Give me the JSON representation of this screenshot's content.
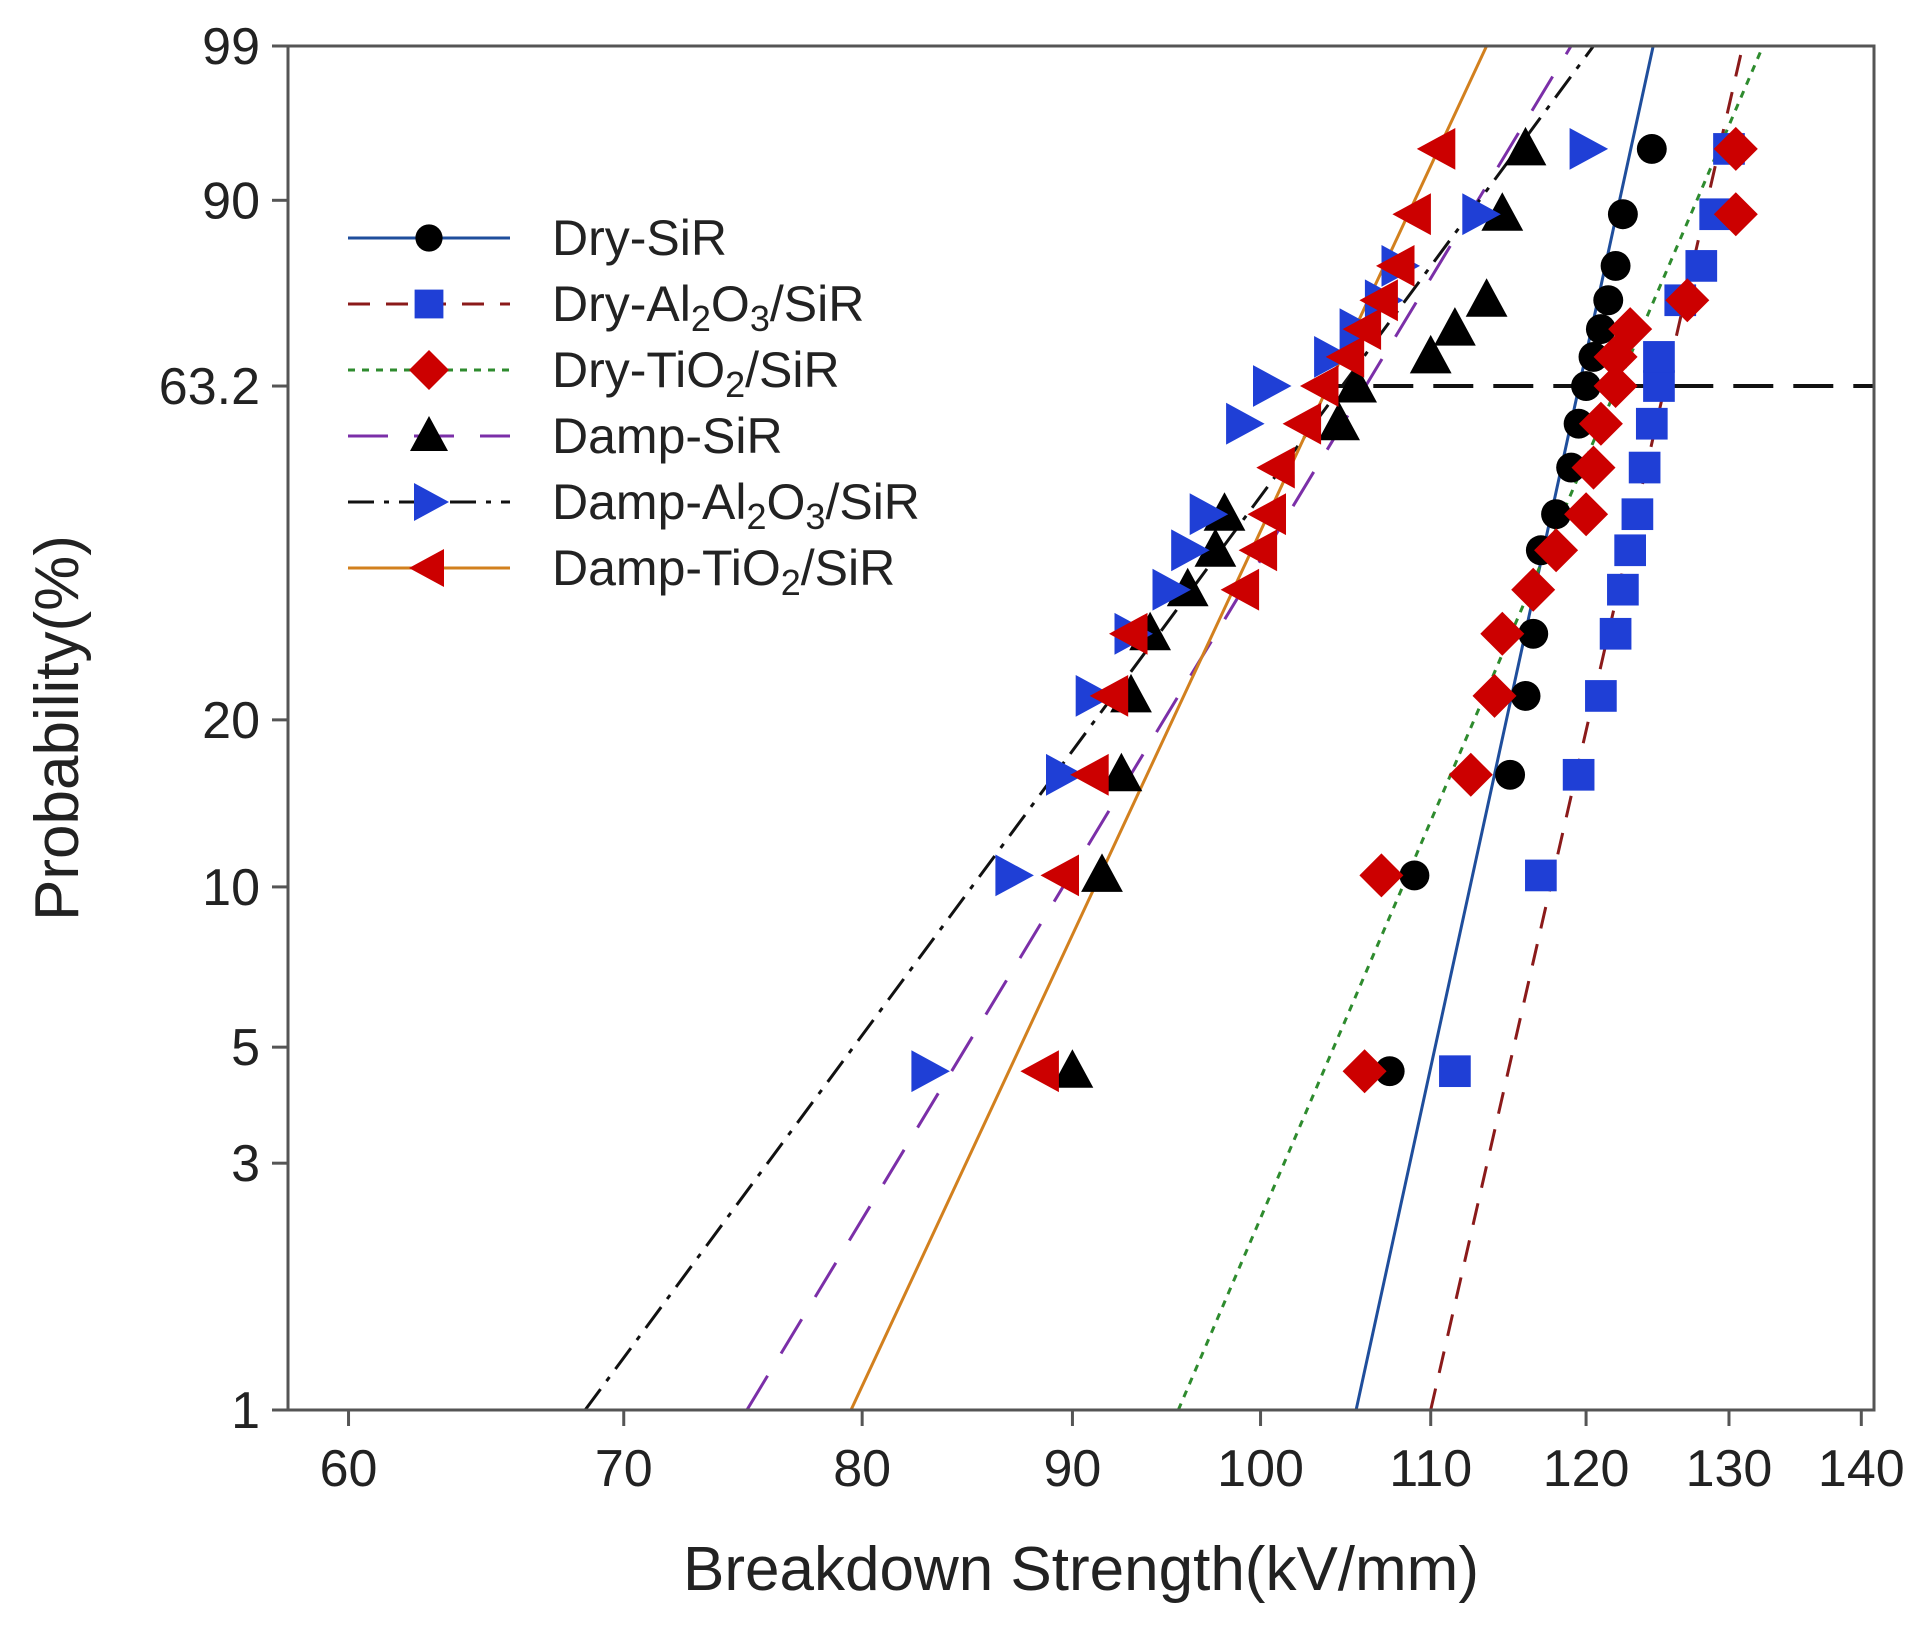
{
  "chart_data": {
    "type": "scatter",
    "title": "",
    "xlabel": "Breakdown Strength(kV/mm)",
    "ylabel": "Probability(%)",
    "x_scale": "log",
    "y_scale": "weibull",
    "xlim": [
      58,
      141
    ],
    "ylim": [
      1,
      99
    ],
    "x_ticks": [
      60,
      70,
      80,
      90,
      100,
      110,
      120,
      130,
      140
    ],
    "x_tick_labels": [
      "60",
      "70",
      "80",
      "90",
      "100",
      "110",
      "120",
      "130",
      "140"
    ],
    "y_ticks": [
      1,
      3,
      5,
      10,
      20,
      63.2,
      90,
      99
    ],
    "y_tick_labels": [
      "1",
      "3",
      "5",
      "10",
      "20",
      "63.2",
      "90",
      "99"
    ],
    "reference_line": {
      "y": 63.2,
      "x_from": 103,
      "style": "dashed",
      "color": "#111111"
    },
    "legend": {
      "position": "top-left",
      "frame": false
    },
    "grid": false,
    "series": [
      {
        "name": "Dry-SiR",
        "label_parts": [
          {
            "text": "Dry-SiR"
          }
        ],
        "color": "#1f4e9c",
        "marker": "circle",
        "marker_color": "#000000",
        "line_style": "solid",
        "points": [
          [
            107.5,
            4.5
          ],
          [
            109,
            10.5
          ],
          [
            115,
            16
          ],
          [
            116,
            22
          ],
          [
            116.5,
            28
          ],
          [
            117,
            38
          ],
          [
            118,
            43
          ],
          [
            119,
            50
          ],
          [
            119.5,
            57
          ],
          [
            120,
            63.2
          ],
          [
            120.5,
            68
          ],
          [
            121,
            72.5
          ],
          [
            121.5,
            77
          ],
          [
            122,
            82
          ],
          [
            122.5,
            88.5
          ],
          [
            124.5,
            94.5
          ]
        ],
        "fit": [
          [
            105.5,
            1
          ],
          [
            124.6,
            99
          ]
        ]
      },
      {
        "name": "Dry-Al2O3/SiR",
        "label_parts": [
          {
            "text": "Dry-Al"
          },
          {
            "text": "2",
            "sub": true
          },
          {
            "text": "O"
          },
          {
            "text": "3",
            "sub": true
          },
          {
            "text": "/SiR"
          }
        ],
        "color": "#8b1a1a",
        "marker": "square",
        "marker_color": "#1f3fd6",
        "line_style": "dashed",
        "points": [
          [
            111.5,
            4.5
          ],
          [
            117,
            10.5
          ],
          [
            119.5,
            16
          ],
          [
            121,
            22
          ],
          [
            122,
            28
          ],
          [
            122.5,
            33
          ],
          [
            123,
            38
          ],
          [
            123.5,
            43
          ],
          [
            124,
            50
          ],
          [
            124.5,
            57
          ],
          [
            125,
            63.2
          ],
          [
            125,
            68
          ],
          [
            126.5,
            77
          ],
          [
            128,
            82
          ],
          [
            129,
            88.5
          ],
          [
            130,
            94.5
          ]
        ],
        "fit": [
          [
            110,
            1
          ],
          [
            131,
            99
          ]
        ]
      },
      {
        "name": "Dry-TiO2/SiR",
        "label_parts": [
          {
            "text": "Dry-TiO"
          },
          {
            "text": "2",
            "sub": true
          },
          {
            "text": "/SiR"
          }
        ],
        "color": "#2e8b2e",
        "marker": "diamond",
        "marker_color": "#cc0000",
        "line_style": "dotted",
        "points": [
          [
            106,
            4.5
          ],
          [
            107,
            10.5
          ],
          [
            112.5,
            16
          ],
          [
            114,
            22
          ],
          [
            114.5,
            28
          ],
          [
            116.5,
            33
          ],
          [
            118,
            38
          ],
          [
            120,
            43
          ],
          [
            120.5,
            50
          ],
          [
            121,
            57
          ],
          [
            122,
            63.2
          ],
          [
            122,
            68
          ],
          [
            123,
            72.5
          ],
          [
            127,
            77
          ],
          [
            130.5,
            88.5
          ],
          [
            130.5,
            94.5
          ]
        ],
        "fit": [
          [
            95.5,
            1
          ],
          [
            132.5,
            99
          ]
        ]
      },
      {
        "name": "Damp-SiR",
        "label_parts": [
          {
            "text": "Damp-SiR"
          }
        ],
        "color": "#7b2fa8",
        "marker": "triangle-up",
        "marker_color": "#000000",
        "line_style": "long-dash",
        "points": [
          [
            90,
            4.5
          ],
          [
            91.5,
            10.5
          ],
          [
            92.5,
            16
          ],
          [
            93,
            22
          ],
          [
            94,
            28
          ],
          [
            96,
            33
          ],
          [
            97.5,
            38
          ],
          [
            98,
            43
          ],
          [
            104.5,
            57
          ],
          [
            105.5,
            63.2
          ],
          [
            110,
            68
          ],
          [
            111.5,
            72.5
          ],
          [
            113.5,
            77
          ],
          [
            114.5,
            88.5
          ],
          [
            116,
            94.5
          ]
        ],
        "fit": [
          [
            75,
            1
          ],
          [
            119,
            99
          ]
        ]
      },
      {
        "name": "Damp-Al2O3/SiR",
        "label_parts": [
          {
            "text": "Damp-Al"
          },
          {
            "text": "2",
            "sub": true
          },
          {
            "text": "O"
          },
          {
            "text": "3",
            "sub": true
          },
          {
            "text": "/SiR"
          }
        ],
        "color": "#111111",
        "marker": "triangle-right",
        "marker_color": "#1f3fd6",
        "line_style": "dash-dot",
        "points": [
          [
            83,
            4.5
          ],
          [
            87,
            10.5
          ],
          [
            89.5,
            16
          ],
          [
            91,
            22
          ],
          [
            93,
            28
          ],
          [
            95,
            33
          ],
          [
            96,
            38
          ],
          [
            97,
            43
          ],
          [
            99,
            57
          ],
          [
            100.5,
            63.2
          ],
          [
            104,
            68
          ],
          [
            105.5,
            72.5
          ],
          [
            107,
            77
          ],
          [
            108,
            82
          ],
          [
            113,
            88.5
          ],
          [
            120,
            94.5
          ]
        ],
        "fit": [
          [
            68.5,
            1
          ],
          [
            120.5,
            99
          ]
        ]
      },
      {
        "name": "Damp-TiO2/SiR",
        "label_parts": [
          {
            "text": "Damp-TiO"
          },
          {
            "text": "2",
            "sub": true
          },
          {
            "text": "/SiR"
          }
        ],
        "color": "#d2801e",
        "marker": "triangle-left",
        "marker_color": "#cc0000",
        "line_style": "solid",
        "points": [
          [
            88.5,
            4.5
          ],
          [
            89.5,
            10.5
          ],
          [
            91,
            16
          ],
          [
            92,
            22
          ],
          [
            93,
            28
          ],
          [
            99,
            33
          ],
          [
            100,
            38
          ],
          [
            100.5,
            43
          ],
          [
            101,
            50
          ],
          [
            102.5,
            57
          ],
          [
            103.5,
            63.2
          ],
          [
            105,
            68
          ],
          [
            106,
            72.5
          ],
          [
            107,
            77
          ],
          [
            108,
            82
          ],
          [
            109,
            88.5
          ],
          [
            110.5,
            94.5
          ]
        ],
        "fit": [
          [
            79.5,
            1
          ],
          [
            113.5,
            99
          ]
        ]
      }
    ]
  }
}
